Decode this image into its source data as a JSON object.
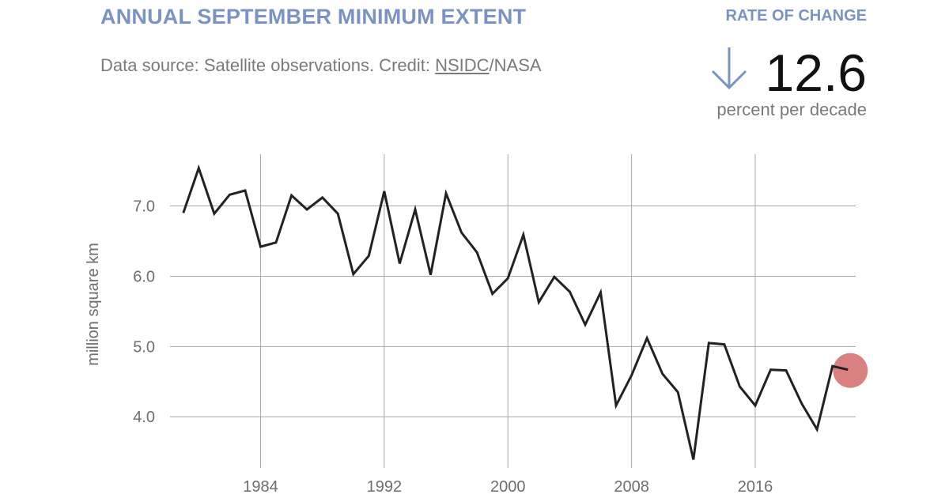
{
  "header": {
    "title": "ANNUAL SEPTEMBER MINIMUM EXTENT",
    "source_prefix": "Data source: Satellite observations. Credit: ",
    "source_link": "NSIDC",
    "source_suffix": "/NASA"
  },
  "rate": {
    "label": "RATE OF CHANGE",
    "value": "12.6",
    "unit": "percent per decade",
    "direction_icon": "down-arrow-icon",
    "color": "#7b93c4"
  },
  "chart_data": {
    "type": "line",
    "ylabel": "million square km",
    "xlabel": "",
    "x": [
      1979,
      1980,
      1981,
      1982,
      1983,
      1984,
      1985,
      1986,
      1987,
      1988,
      1989,
      1990,
      1991,
      1992,
      1993,
      1994,
      1995,
      1996,
      1997,
      1998,
      1999,
      2000,
      2001,
      2002,
      2003,
      2004,
      2005,
      2006,
      2007,
      2008,
      2009,
      2010,
      2011,
      2012,
      2013,
      2014,
      2015,
      2016,
      2017,
      2018,
      2019,
      2020,
      2021,
      2022
    ],
    "y": [
      6.9,
      7.54,
      6.89,
      7.16,
      7.22,
      6.42,
      6.48,
      7.15,
      6.95,
      7.12,
      6.89,
      6.03,
      6.29,
      7.21,
      6.18,
      6.95,
      6.02,
      7.18,
      6.62,
      6.34,
      5.75,
      5.97,
      6.59,
      5.63,
      5.99,
      5.78,
      5.31,
      5.77,
      4.16,
      4.59,
      5.12,
      4.61,
      4.35,
      3.39,
      5.05,
      5.03,
      4.43,
      4.16,
      4.67,
      4.66,
      4.19,
      3.82,
      4.72,
      4.67
    ],
    "xticks": [
      1984,
      1992,
      2000,
      2008,
      2016
    ],
    "xtick_labels": [
      "1984",
      "1992",
      "2000",
      "2008",
      "2016"
    ],
    "yticks": [
      4.0,
      5.0,
      6.0,
      7.0
    ],
    "ytick_labels": [
      "4.0",
      "5.0",
      "6.0",
      "7.0"
    ],
    "xlim": [
      1978.5,
      2022.5
    ],
    "ylim": [
      3.35,
      7.85
    ],
    "grid": true,
    "line_color": "#222222",
    "highlight": {
      "x": 2022,
      "y": 4.67,
      "color": "#cc5555"
    }
  }
}
